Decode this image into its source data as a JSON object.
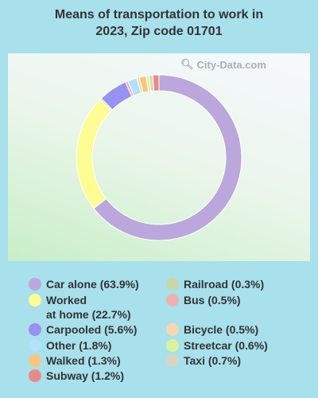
{
  "title_line1": "Means of transportation to work in",
  "title_line2": "2023, Zip code 01701",
  "watermark": {
    "text": "City-Data.com",
    "icon": "search-icon"
  },
  "chart_data": {
    "type": "pie",
    "subtype": "donut",
    "title": "Means of transportation to work in 2023, Zip code 01701",
    "slices": [
      {
        "name": "Car alone",
        "value": 63.9,
        "label": "Car alone (63.9%)",
        "color": "#bba7db"
      },
      {
        "name": "Worked at home",
        "value": 22.7,
        "label": "Worked\nat home (22.7%)",
        "color": "#fdfd94"
      },
      {
        "name": "Railroad",
        "value": 0.3,
        "label": "Railroad (0.3%)",
        "color": "#c7d7ab"
      },
      {
        "name": "Carpooled",
        "value": 5.6,
        "label": "Carpooled (5.6%)",
        "color": "#9891ef"
      },
      {
        "name": "Bus",
        "value": 0.5,
        "label": "Bus (0.5%)",
        "color": "#efb0b0"
      },
      {
        "name": "Other",
        "value": 1.8,
        "label": "Other (1.8%)",
        "color": "#b3e0fb"
      },
      {
        "name": "Bicycle",
        "value": 0.5,
        "label": "Bicycle (0.5%)",
        "color": "#f7d7b0"
      },
      {
        "name": "Walked",
        "value": 1.3,
        "label": "Walked (1.3%)",
        "color": "#f8c680"
      },
      {
        "name": "Streetcar",
        "value": 0.6,
        "label": "Streetcar (0.6%)",
        "color": "#d9f59a"
      },
      {
        "name": "Taxi",
        "value": 0.7,
        "label": "Taxi (0.7%)",
        "color": "#d8d5c1"
      },
      {
        "name": "Subway",
        "value": 1.2,
        "label": "Subway (1.2%)",
        "color": "#e88a8a"
      }
    ],
    "legend_position": "bottom",
    "legend_columns": [
      [
        "Car alone",
        "Worked at home",
        "Carpooled",
        "Other",
        "Walked",
        "Subway"
      ],
      [
        "Railroad",
        "Bus",
        "Bicycle",
        "Streetcar",
        "Taxi"
      ]
    ]
  }
}
